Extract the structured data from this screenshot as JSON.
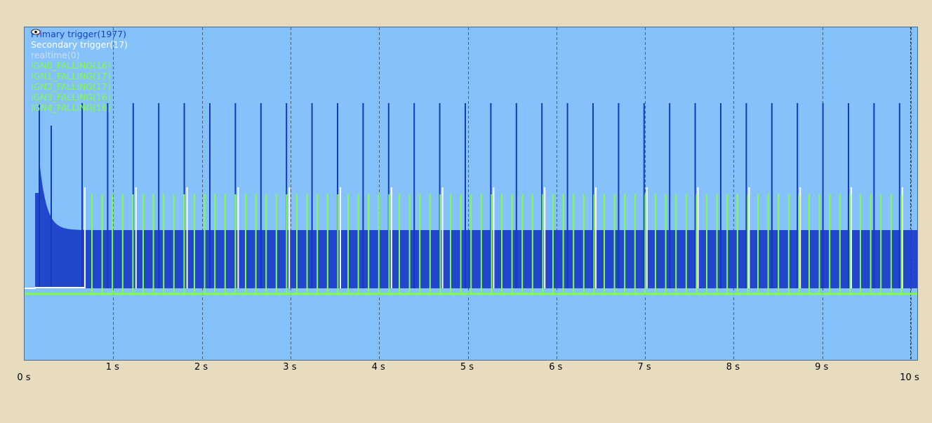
{
  "legend": [
    {
      "label": "Primary trigger(1977)",
      "color": "#1a3cc8",
      "icon": "eye-icon",
      "visible": true
    },
    {
      "label": "Secondary trigger(17)",
      "color": "#ffffff",
      "icon": "eye-icon",
      "visible": true
    },
    {
      "label": "realtime(0)",
      "color": "#d0dce8",
      "icon": "eye-hidden-icon",
      "visible": false
    },
    {
      "label": "IGN0_FALLING(16)",
      "color": "#80ff40",
      "icon": "eye-icon",
      "visible": true
    },
    {
      "label": "IGN1_FALLING(17)",
      "color": "#80ff40",
      "icon": "eye-icon",
      "visible": true
    },
    {
      "label": "IGN2_FALLING(17)",
      "color": "#80ff40",
      "icon": "eye-icon",
      "visible": true
    },
    {
      "label": "IGN3_FALLING(16)",
      "color": "#80ff40",
      "icon": "eye-icon",
      "visible": true
    },
    {
      "label": "IGN4_FALLING(16)",
      "color": "#80ff40",
      "icon": "eye-icon",
      "visible": true
    }
  ],
  "x_axis": {
    "labels": [
      "0 s",
      "1 s",
      "2 s",
      "3 s",
      "4 s",
      "5 s",
      "6 s",
      "7 s",
      "8 s",
      "9 s",
      "10 s"
    ]
  },
  "colors": {
    "background": "#e8dcc0",
    "plot_background": "#85c1fb",
    "primary": "#1a3cc8",
    "secondary": "#ffffff",
    "ignition": "#80ff40",
    "grid": "#4a6a88"
  },
  "chart_data": {
    "type": "line",
    "xlim": [
      0,
      10.1
    ],
    "series": [
      {
        "name": "Primary trigger(1977)"
      },
      {
        "name": "Secondary trigger(17)"
      },
      {
        "name": "IGN0_FALLING(16)"
      }
    ]
  }
}
